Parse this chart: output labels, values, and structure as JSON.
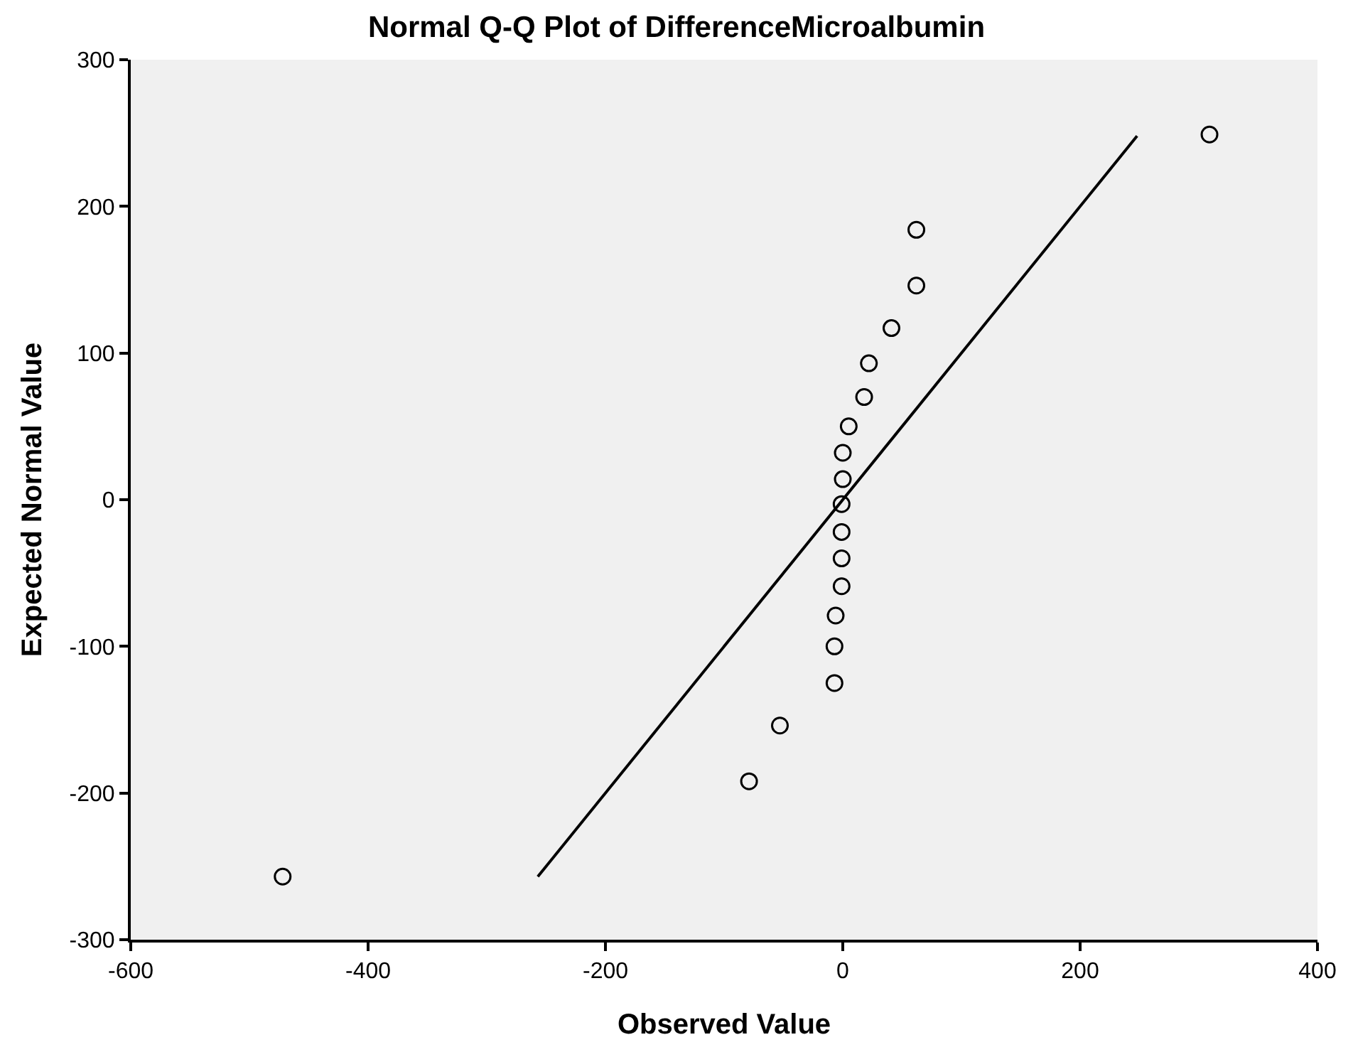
{
  "chart_data": {
    "type": "scatter",
    "title": "Normal Q-Q Plot of DifferenceMicroalbumin",
    "xlabel": "Observed Value",
    "ylabel": "Expected Normal Value",
    "series": [
      {
        "color": "#000000",
        "marker": "circle",
        "x": [
          -472,
          -79,
          -53,
          -7,
          -7,
          -6,
          -1,
          -1,
          -1,
          -1,
          0,
          0,
          5,
          18,
          22,
          41,
          62,
          62,
          309
        ],
        "values": [
          -257,
          -192,
          -154,
          -125,
          -100,
          -79,
          -59,
          -40,
          -22,
          -3,
          14,
          32,
          50,
          70,
          93,
          117,
          146,
          184,
          249
        ]
      },
      {
        "type": "line",
        "color": "#000000",
        "marker": "none",
        "line_style": "solid",
        "x": [
          -257,
          248
        ],
        "values": [
          -257,
          248
        ]
      }
    ],
    "xlim": [
      -600,
      400
    ],
    "ylim": [
      -300,
      300
    ],
    "xticks": [
      -600,
      -400,
      -200,
      0,
      200,
      400
    ],
    "yticks": [
      -300,
      -200,
      -100,
      0,
      100,
      200,
      300
    ],
    "grid": false
  }
}
